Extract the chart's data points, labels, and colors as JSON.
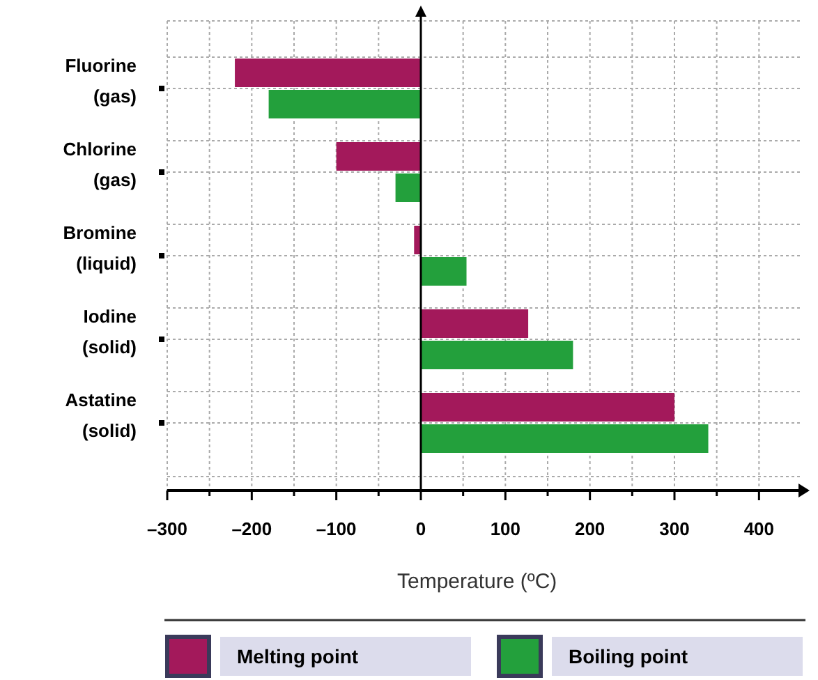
{
  "chart_data": {
    "type": "bar",
    "orientation": "horizontal",
    "xlabel": "Temperature (ºC)",
    "categories": [
      "Fluorine\n(gas)",
      "Chlorine\n(gas)",
      "Bromine\n(liquid)",
      "Iodine\n(solid)",
      "Astatine\n(solid)"
    ],
    "series": [
      {
        "name": "Melting point",
        "color": "#a3195b",
        "values": [
          -220,
          -100,
          -8,
          127,
          300
        ]
      },
      {
        "name": "Boiling point",
        "color": "#23a03c",
        "values": [
          -180,
          -30,
          54,
          180,
          340
        ]
      }
    ],
    "xlim": [
      -300,
      450
    ],
    "xticks": [
      {
        "value": -300,
        "label": "–300"
      },
      {
        "value": -250,
        "label": null
      },
      {
        "value": -200,
        "label": "–200"
      },
      {
        "value": -150,
        "label": null
      },
      {
        "value": -100,
        "label": "–100"
      },
      {
        "value": -50,
        "label": null
      },
      0,
      {
        "value": 50,
        "label": null
      },
      100,
      {
        "value": 150,
        "label": null
      },
      200,
      {
        "value": 250,
        "label": null
      },
      300,
      {
        "value": 350,
        "label": null
      },
      400
    ],
    "grid": true,
    "legend": "bottom"
  }
}
